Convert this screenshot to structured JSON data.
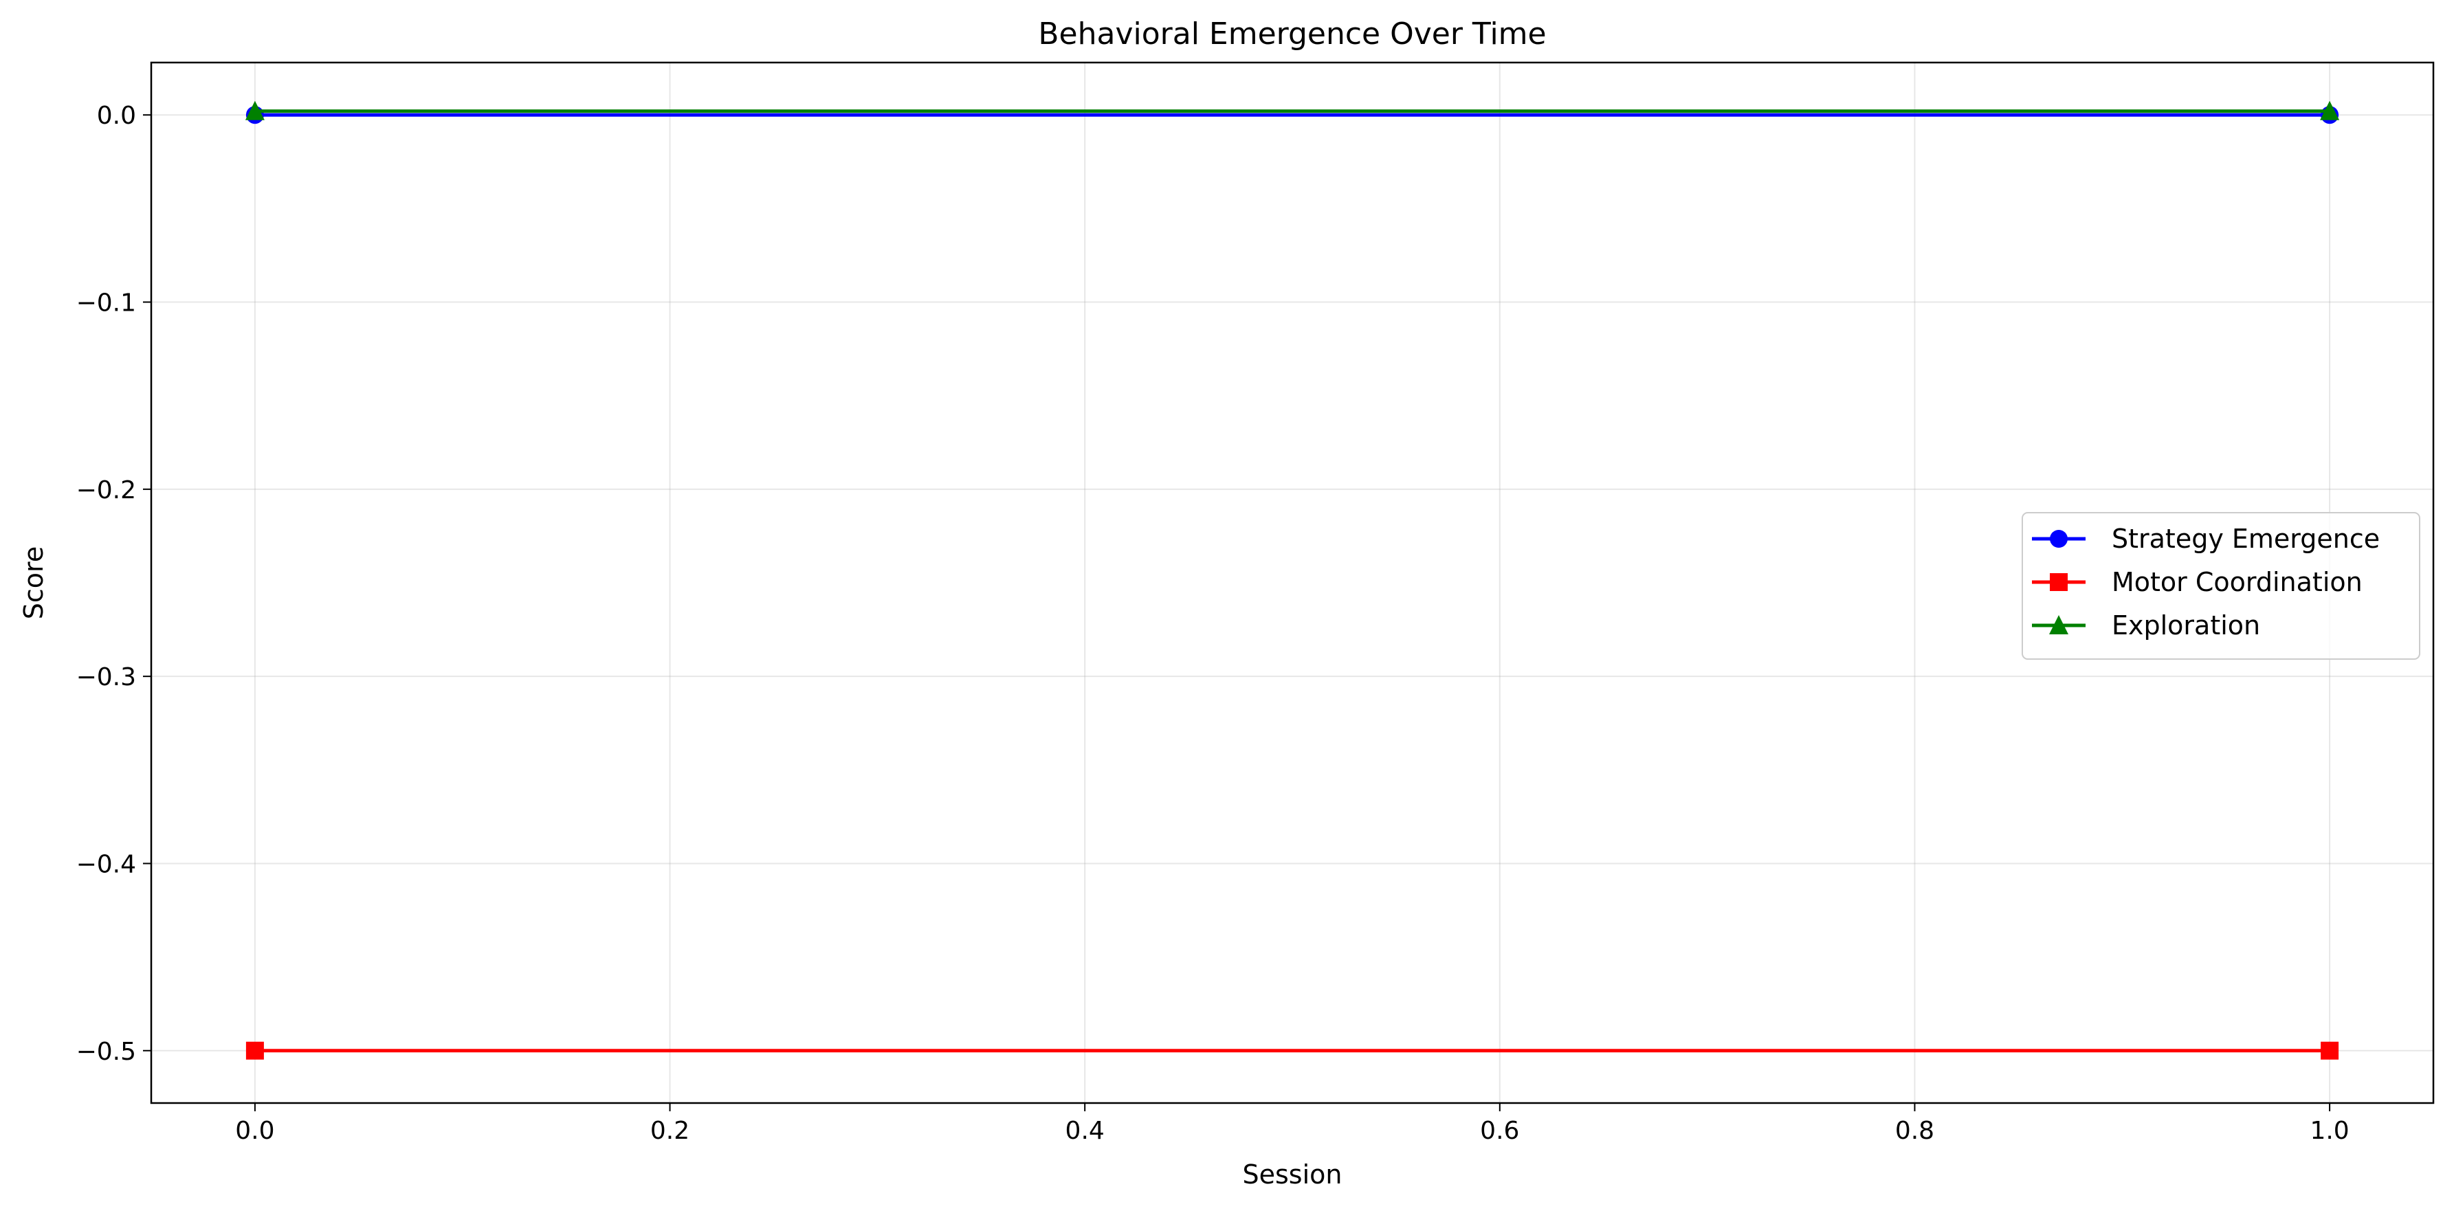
{
  "chart_data": {
    "type": "line",
    "title": "Behavioral Emergence Over Time",
    "xlabel": "Session",
    "ylabel": "Score",
    "xlim": [
      -0.05,
      1.05
    ],
    "ylim": [
      -0.528,
      0.028
    ],
    "xticks": [
      0.0,
      0.2,
      0.4,
      0.6,
      0.8,
      1.0
    ],
    "xtick_labels": [
      "0.0",
      "0.2",
      "0.4",
      "0.6",
      "0.8",
      "1.0"
    ],
    "yticks": [
      0.0,
      -0.1,
      -0.2,
      -0.3,
      -0.4,
      -0.5
    ],
    "ytick_labels": [
      "0.0",
      "−0.1",
      "−0.2",
      "−0.3",
      "−0.4",
      "−0.5"
    ],
    "grid": true,
    "legend_position": "center-right",
    "x": [
      0,
      1
    ],
    "series": [
      {
        "name": "Strategy Emergence",
        "values": [
          0.0,
          0.0
        ],
        "color": "#0000ff",
        "marker": "circle"
      },
      {
        "name": "Motor Coordination",
        "values": [
          -0.5,
          -0.5
        ],
        "color": "#ff0000",
        "marker": "square"
      },
      {
        "name": "Exploration",
        "values": [
          0.002,
          0.002
        ],
        "color": "#008000",
        "marker": "triangle"
      }
    ]
  }
}
